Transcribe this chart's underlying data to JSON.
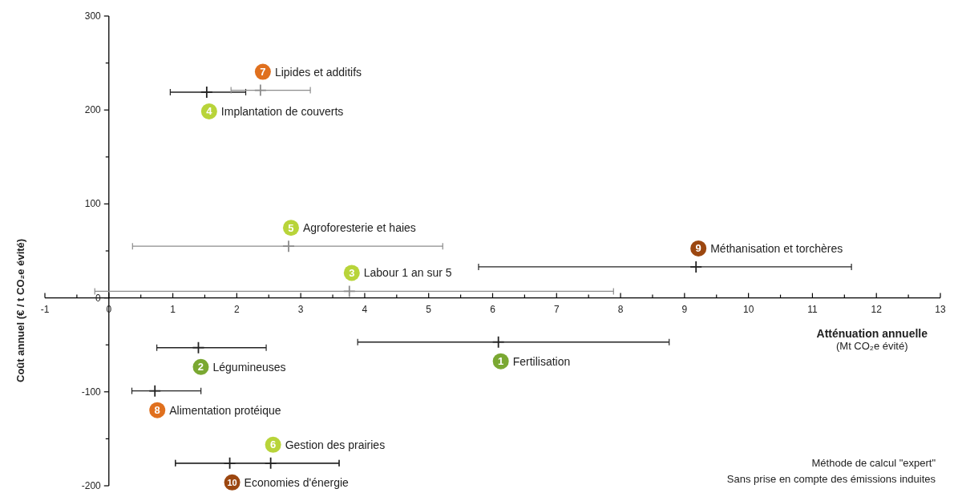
{
  "chart_data": {
    "type": "scatter",
    "xlabel": "Atténuation annuelle\n(Mt CO₂e évité)",
    "ylabel": "Coût annuel  (€ / t CO₂e évité)",
    "marker": "cross",
    "xlim": [
      -1,
      13
    ],
    "ylim": [
      -200,
      300
    ],
    "xticks": [
      -1,
      {
        "value": -0.5,
        "label": null
      },
      0,
      {
        "value": 0.5,
        "label": null
      },
      1,
      {
        "value": 1.5,
        "label": null
      },
      2,
      {
        "value": 2.5,
        "label": null
      },
      3,
      {
        "value": 3.5,
        "label": null
      },
      4,
      {
        "value": 4.5,
        "label": null
      },
      5,
      {
        "value": 5.5,
        "label": null
      },
      6,
      {
        "value": 6.5,
        "label": null
      },
      7,
      {
        "value": 7.5,
        "label": null
      },
      8,
      {
        "value": 8.5,
        "label": null
      },
      9,
      {
        "value": 9.5,
        "label": null
      },
      10,
      {
        "value": 10.5,
        "label": null
      },
      11,
      {
        "value": 11.5,
        "label": null
      },
      12,
      {
        "value": 12.5,
        "label": null
      },
      13
    ],
    "yticks": [
      -200,
      {
        "value": -150,
        "label": null
      },
      -100,
      {
        "value": -50,
        "label": null
      },
      0,
      {
        "value": 50,
        "label": null
      },
      100,
      {
        "value": 150,
        "label": null
      },
      200,
      {
        "value": 250,
        "label": null
      },
      300
    ],
    "series": [
      {
        "name": "1 Fertilisation",
        "x": [
          6.09
        ],
        "values": [
          -47
        ],
        "xerrors": [
          [
            3.89,
            8.76
          ]
        ],
        "color": "#222222"
      },
      {
        "name": "2 Légumineuses",
        "x": [
          1.4
        ],
        "values": [
          -53
        ],
        "xerrors": [
          [
            0.75,
            2.46
          ]
        ],
        "color": "#222222"
      },
      {
        "name": "3 Labour 1 an sur 5",
        "x": [
          3.76
        ],
        "values": [
          7
        ],
        "xerrors": [
          [
            -0.22,
            7.89
          ]
        ],
        "color": "#8c8c8c"
      },
      {
        "name": "4 Implantation de couverts",
        "x": [
          1.53
        ],
        "values": [
          219
        ],
        "xerrors": [
          [
            0.96,
            2.14
          ]
        ],
        "color": "#222222"
      },
      {
        "name": "5 Agroforesterie et haies",
        "x": [
          2.81
        ],
        "values": [
          55
        ],
        "xerrors": [
          [
            0.37,
            5.22
          ]
        ],
        "color": "#8c8c8c"
      },
      {
        "name": "6 Gestion des prairies",
        "x": [
          2.53
        ],
        "values": [
          -176
        ],
        "xerrors": [
          [
            1.04,
            3.6
          ]
        ],
        "color": "#222222"
      },
      {
        "name": "7 Lipides et additifs",
        "x": [
          2.37
        ],
        "values": [
          221
        ],
        "xerrors": [
          [
            1.91,
            3.15
          ]
        ],
        "color": "#8c8c8c"
      },
      {
        "name": "8 Alimentation protéique",
        "x": [
          0.72
        ],
        "values": [
          -99
        ],
        "xerrors": [
          [
            0.36,
            1.44
          ]
        ],
        "color": "#222222"
      },
      {
        "name": "9 Méthanisation et torchères",
        "x": [
          9.18
        ],
        "values": [
          33
        ],
        "xerrors": [
          [
            5.78,
            11.61
          ]
        ],
        "color": "#222222"
      },
      {
        "name": "10 Economies d'énergie",
        "x": [
          1.89
        ],
        "values": [
          -176
        ],
        "xerrors": [
          [
            1.04,
            3.6
          ]
        ],
        "color": "#222222"
      }
    ],
    "annotations": [
      "Méthode de calcul \"expert\"",
      "Sans prise en compte des émissions induites"
    ]
  }
}
